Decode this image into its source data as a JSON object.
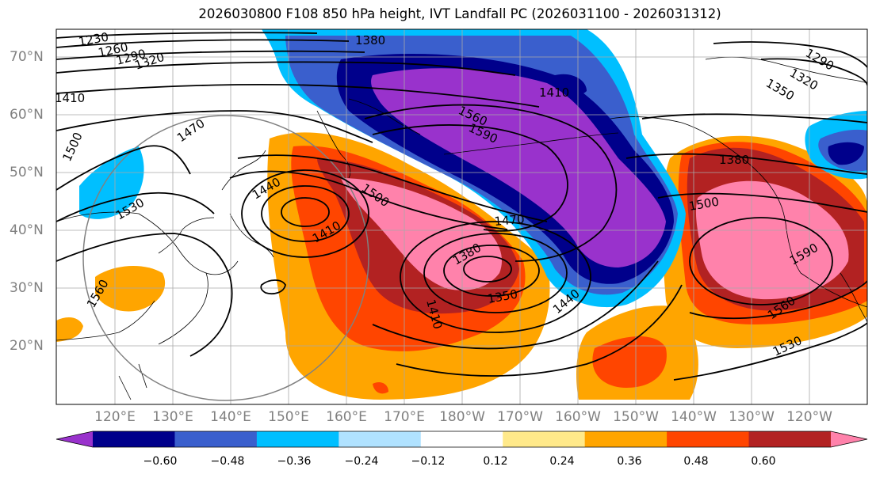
{
  "title": "2026030800 F108 850 hPa height, IVT Landfall PC (2026031100 - 2026031312)",
  "lat_labels": [
    "70°N",
    "60°N",
    "50°N",
    "40°N",
    "30°N",
    "20°N"
  ],
  "lon_labels": [
    "120°E",
    "130°E",
    "140°E",
    "150°E",
    "160°E",
    "170°E",
    "180°W",
    "170°W",
    "160°W",
    "150°W",
    "140°W",
    "130°W",
    "120°W"
  ],
  "height_contour_labels": [
    "1230",
    "1260",
    "1290",
    "1320",
    "1350",
    "1380",
    "1410",
    "1440",
    "1470",
    "1500",
    "1530",
    "1560",
    "1590"
  ],
  "colorbar": {
    "ticks": [
      "−0.60",
      "−0.48",
      "−0.36",
      "−0.24",
      "−0.12",
      "0.12",
      "0.24",
      "0.36",
      "0.48",
      "0.60"
    ],
    "colors": [
      "#9932cc",
      "#00008b",
      "#3a5fcd",
      "#00bfff",
      "#b0e2ff",
      "#ffffff",
      "#ffe98a",
      "#ffa500",
      "#ff4500",
      "#b22222",
      "#ff82ab"
    ]
  }
}
